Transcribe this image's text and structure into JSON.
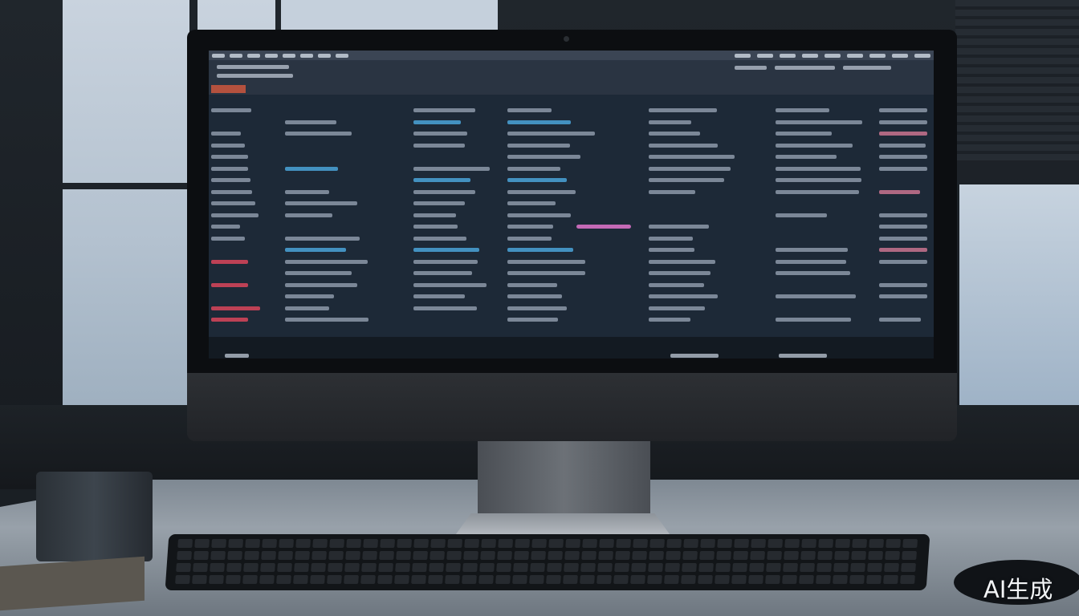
{
  "scene": {
    "subject": "desktop-monitor-showing-dashboard",
    "colors": {
      "screen_background": "#1d2937",
      "accent_blue": "#4aa3d8",
      "accent_green": "#3fb59a",
      "accent_red": "#d9455a",
      "accent_pink": "#c46ab6",
      "badge_orange": "#b4513e"
    },
    "icons": [
      "webcam-icon"
    ]
  },
  "watermark": {
    "text": "AI生成"
  }
}
